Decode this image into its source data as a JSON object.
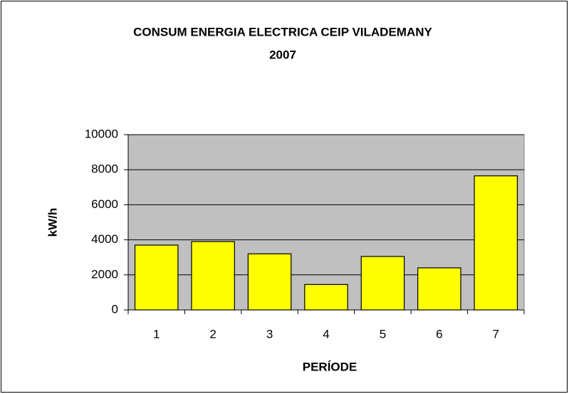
{
  "chart_data": {
    "type": "bar",
    "title": [
      "CONSUM ENERGIA ELECTRICA CEIP VILADEMANY",
      "2007"
    ],
    "x_label": "PERÍODE",
    "y_label": "kW/h",
    "categories": [
      "1",
      "2",
      "3",
      "4",
      "5",
      "6",
      "7"
    ],
    "values": [
      3700,
      3900,
      3200,
      1450,
      3050,
      2400,
      7650
    ],
    "color": "#ffff00",
    "ylim": [
      0,
      10000
    ],
    "yticks": [
      0,
      2000,
      4000,
      6000,
      8000,
      10000
    ],
    "grid": true
  }
}
